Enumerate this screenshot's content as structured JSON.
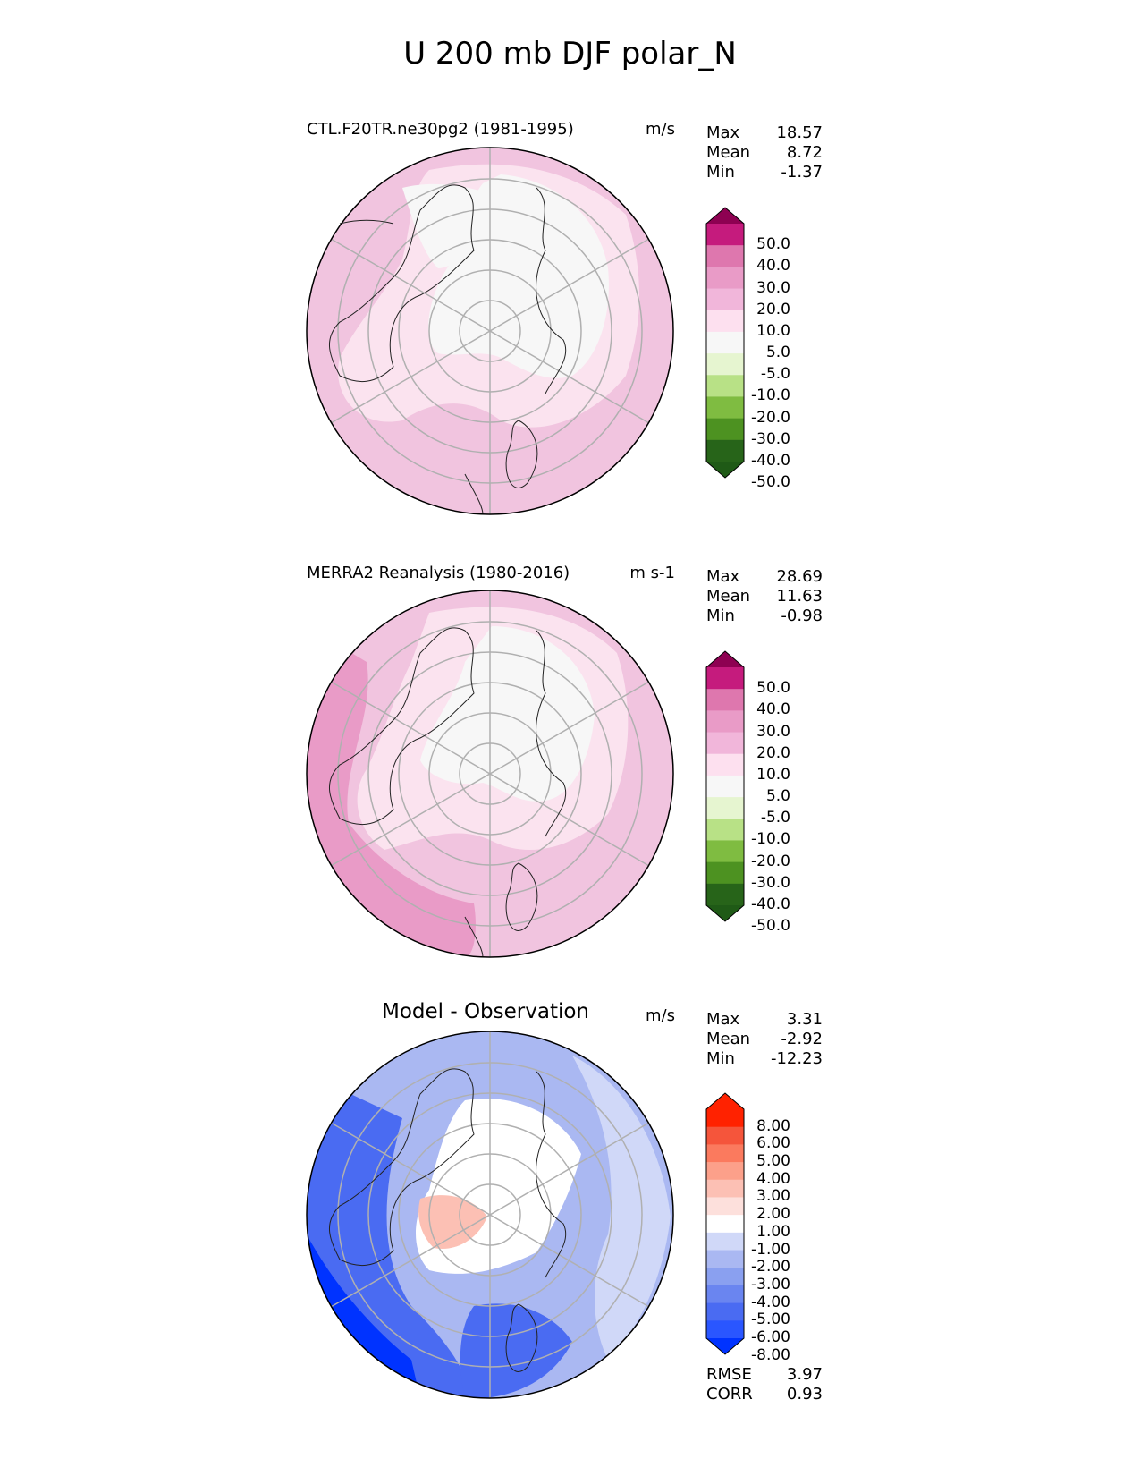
{
  "title": "U 200 mb DJF polar_N",
  "panels": [
    {
      "id": "test",
      "title": "CTL.F20TR.ne30pg2 (1981-1995)",
      "units": "m/s",
      "stats": {
        "max_label": "Max",
        "max": "18.57",
        "mean_label": "Mean",
        "mean": "8.72",
        "min_label": "Min",
        "min": "-1.37"
      },
      "colorbar_labels": [
        "50.0",
        "40.0",
        "30.0",
        "20.0",
        "10.0",
        "5.0",
        "-5.0",
        "-10.0",
        "-20.0",
        "-30.0",
        "-40.0",
        "-50.0"
      ]
    },
    {
      "id": "reference",
      "title": "MERRA2 Reanalysis (1980-2016)",
      "units": "m s-1",
      "stats": {
        "max_label": "Max",
        "max": "28.69",
        "mean_label": "Mean",
        "mean": "11.63",
        "min_label": "Min",
        "min": "-0.98"
      },
      "colorbar_labels": [
        "50.0",
        "40.0",
        "30.0",
        "20.0",
        "10.0",
        "5.0",
        "-5.0",
        "-10.0",
        "-20.0",
        "-30.0",
        "-40.0",
        "-50.0"
      ]
    },
    {
      "id": "diff",
      "title": "Model - Observation",
      "units": "m/s",
      "stats": {
        "max_label": "Max",
        "max": "3.31",
        "mean_label": "Mean",
        "mean": "-2.92",
        "min_label": "Min",
        "min": "-12.23"
      },
      "colorbar_labels": [
        "8.00",
        "6.00",
        "5.00",
        "4.00",
        "3.00",
        "2.00",
        "1.00",
        "-1.00",
        "-2.00",
        "-3.00",
        "-4.00",
        "-5.00",
        "-6.00",
        "-8.00"
      ],
      "rmse_label": "RMSE",
      "rmse": "3.97",
      "corr_label": "CORR",
      "corr": "0.93"
    }
  ],
  "colors": {
    "field_levels": [
      "#276419",
      "#4d9221",
      "#7fbc41",
      "#b8e186",
      "#e6f5d0",
      "#f7f7f7",
      "#fde0ef",
      "#f1b6da",
      "#de77ae",
      "#c51b7d",
      "#8e0152"
    ],
    "diff_levels": [
      "#0033ff",
      "#2a56ff",
      "#4a6bf2",
      "#6a85f0",
      "#8aa0f0",
      "#aab8f2",
      "#d0d8f8",
      "#ffffff",
      "#fde0dc",
      "#fcc0b4",
      "#fca08a",
      "#fb7a5e",
      "#f5553b",
      "#ff2200"
    ],
    "coastline": "#222222",
    "grid": "#b0b0b0"
  }
}
